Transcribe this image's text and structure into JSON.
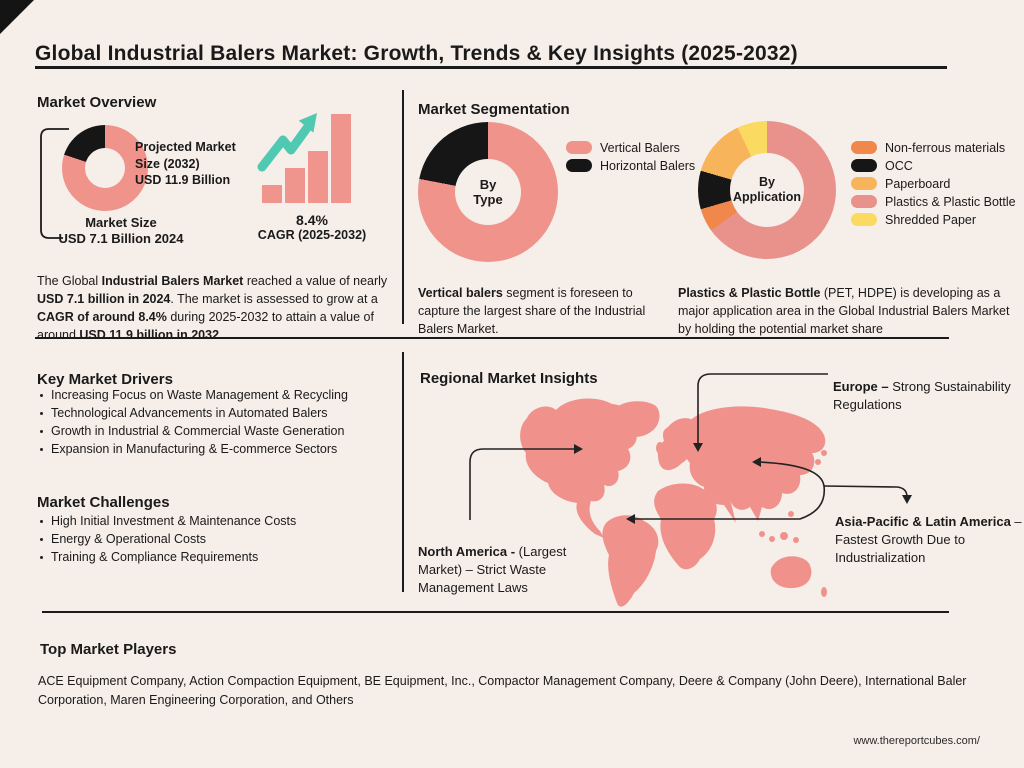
{
  "page": {
    "title": "Global Industrial Balers Market: Growth, Trends & Key Insights (2025-2032)",
    "footer_url": "www.thereportcubes.com/"
  },
  "market_overview": {
    "heading": "Market Overview",
    "projected_label": "Projected Market Size (2032)",
    "projected_value": "USD 11.9 Billion",
    "market_size_label": "Market Size",
    "market_size_value": "USD 7.1 Billion 2024",
    "summary_parts": [
      "The Global ",
      "Industrial Balers Market",
      " reached a value of nearly ",
      "USD 7.1 billion in 2024",
      ". The market is assessed to grow at a ",
      "CAGR of around 8.4%",
      " during 2025-2032 to attain a value of around ",
      "USD 11.9 billion in 2032",
      "."
    ]
  },
  "market_segmentation": {
    "heading": "Market Segmentation",
    "type_note_parts": [
      "Vertical balers",
      " segment is foreseen to capture the largest share of the Industrial Balers Market."
    ],
    "app_note_parts": [
      "Plastics & Plastic Bottle",
      " (PET, HDPE) is developing as a major application area in the Global Industrial Balers Market by holding the potential market share"
    ]
  },
  "key_market_drivers": {
    "heading": "Key Market Drivers",
    "items": [
      "Increasing Focus on Waste Management & Recycling",
      "Technological Advancements in Automated Balers",
      "Growth in Industrial & Commercial Waste Generation",
      "Expansion in Manufacturing & E-commerce Sectors"
    ]
  },
  "market_challenges": {
    "heading": "Market Challenges",
    "items": [
      "High Initial Investment & Maintenance Costs",
      "Energy & Operational Costs",
      "Training & Compliance Requirements"
    ]
  },
  "regional": {
    "heading": "Regional Market Insights",
    "europe_parts": [
      "Europe –",
      " Strong Sustainability Regulations"
    ],
    "north_america_parts": [
      "North America -",
      " (Largest Market) – Strict Waste Management Laws"
    ],
    "asia_parts": [
      "Asia-Pacific & Latin America",
      " – Fastest Growth Due to Industrialization"
    ]
  },
  "top_market_players": {
    "heading": "Top Market Players",
    "text": "ACE Equipment Company, Action Compaction Equipment, BE Equipment, Inc., Compactor Management Company, Deere & Company (John Deere), International Baler Corporation, Maren Engineering Corporation, and Others"
  },
  "colors": {
    "background": "#F6EEE9",
    "salmon": "#EF938B",
    "black": "#161616",
    "orange": "#F0884C",
    "amber": "#F8B45A",
    "yellow": "#FBDA62",
    "teal": "#4FC9B1",
    "map": "#F0928B"
  },
  "chart_data": [
    {
      "type": "pie",
      "name": "market-size-donut",
      "segments": [
        {
          "label": "",
          "value": 80,
          "color": "#EF938B"
        },
        {
          "label": "",
          "value": 20,
          "color": "#161616"
        }
      ]
    },
    {
      "type": "pie",
      "name": "by-type-donut",
      "center_label": "By Type",
      "legend_position": "right",
      "segments": [
        {
          "label": "Vertical Balers",
          "value": 78,
          "color": "#EF938B"
        },
        {
          "label": "Horizontal Balers",
          "value": 22,
          "color": "#161616"
        }
      ]
    },
    {
      "type": "pie",
      "name": "by-application-donut",
      "center_label": "By Application",
      "legend_position": "right",
      "segments": [
        {
          "label": "Plastics & Plastic Bottle",
          "value": 65,
          "color": "#E9928C"
        },
        {
          "label": "Non-ferrous materials",
          "value": 5.5,
          "color": "#F0884C"
        },
        {
          "label": "OCC",
          "value": 9,
          "color": "#161616"
        },
        {
          "label": "Paperboard",
          "value": 13.5,
          "color": "#F8B45A"
        },
        {
          "label": "Shredded Paper",
          "value": 7,
          "color": "#FBDA62"
        }
      ]
    },
    {
      "type": "bar",
      "name": "cagr-bar-chart",
      "values": [
        18,
        35,
        52,
        89
      ],
      "color": "#F0958D",
      "trend": "increasing",
      "trend_arrow_color": "#4FC9B1",
      "label": "8.4%",
      "sublabel": "CAGR (2025-2032)"
    }
  ]
}
